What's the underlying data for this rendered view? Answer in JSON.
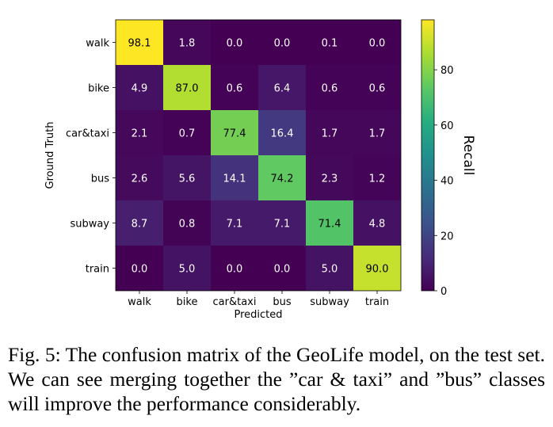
{
  "chart_data": {
    "type": "heatmap",
    "title": "",
    "xlabel": "Predicted",
    "ylabel": "Ground Truth",
    "x_categories": [
      "walk",
      "bike",
      "car&taxi",
      "bus",
      "subway",
      "train"
    ],
    "y_categories": [
      "walk",
      "bike",
      "car&taxi",
      "bus",
      "subway",
      "train"
    ],
    "values": [
      [
        98.1,
        1.8,
        0.0,
        0.0,
        0.1,
        0.0
      ],
      [
        4.9,
        87.0,
        0.6,
        6.4,
        0.6,
        0.6
      ],
      [
        2.1,
        0.7,
        77.4,
        16.4,
        1.7,
        1.7
      ],
      [
        2.6,
        5.6,
        14.1,
        74.2,
        2.3,
        1.2
      ],
      [
        8.7,
        0.8,
        7.1,
        7.1,
        71.4,
        4.8
      ],
      [
        0.0,
        5.0,
        0.0,
        0.0,
        5.0,
        90.0
      ]
    ],
    "colorbar": {
      "label": "Recall",
      "colormap": "viridis",
      "range": [
        0,
        98.1
      ],
      "ticks": [
        0,
        20,
        40,
        60,
        80
      ]
    }
  },
  "caption": "Fig. 5: The confusion matrix of the GeoLife model, on the test set. We can see merging together the ”car & taxi” and ”bus” classes will improve the performance considerably."
}
